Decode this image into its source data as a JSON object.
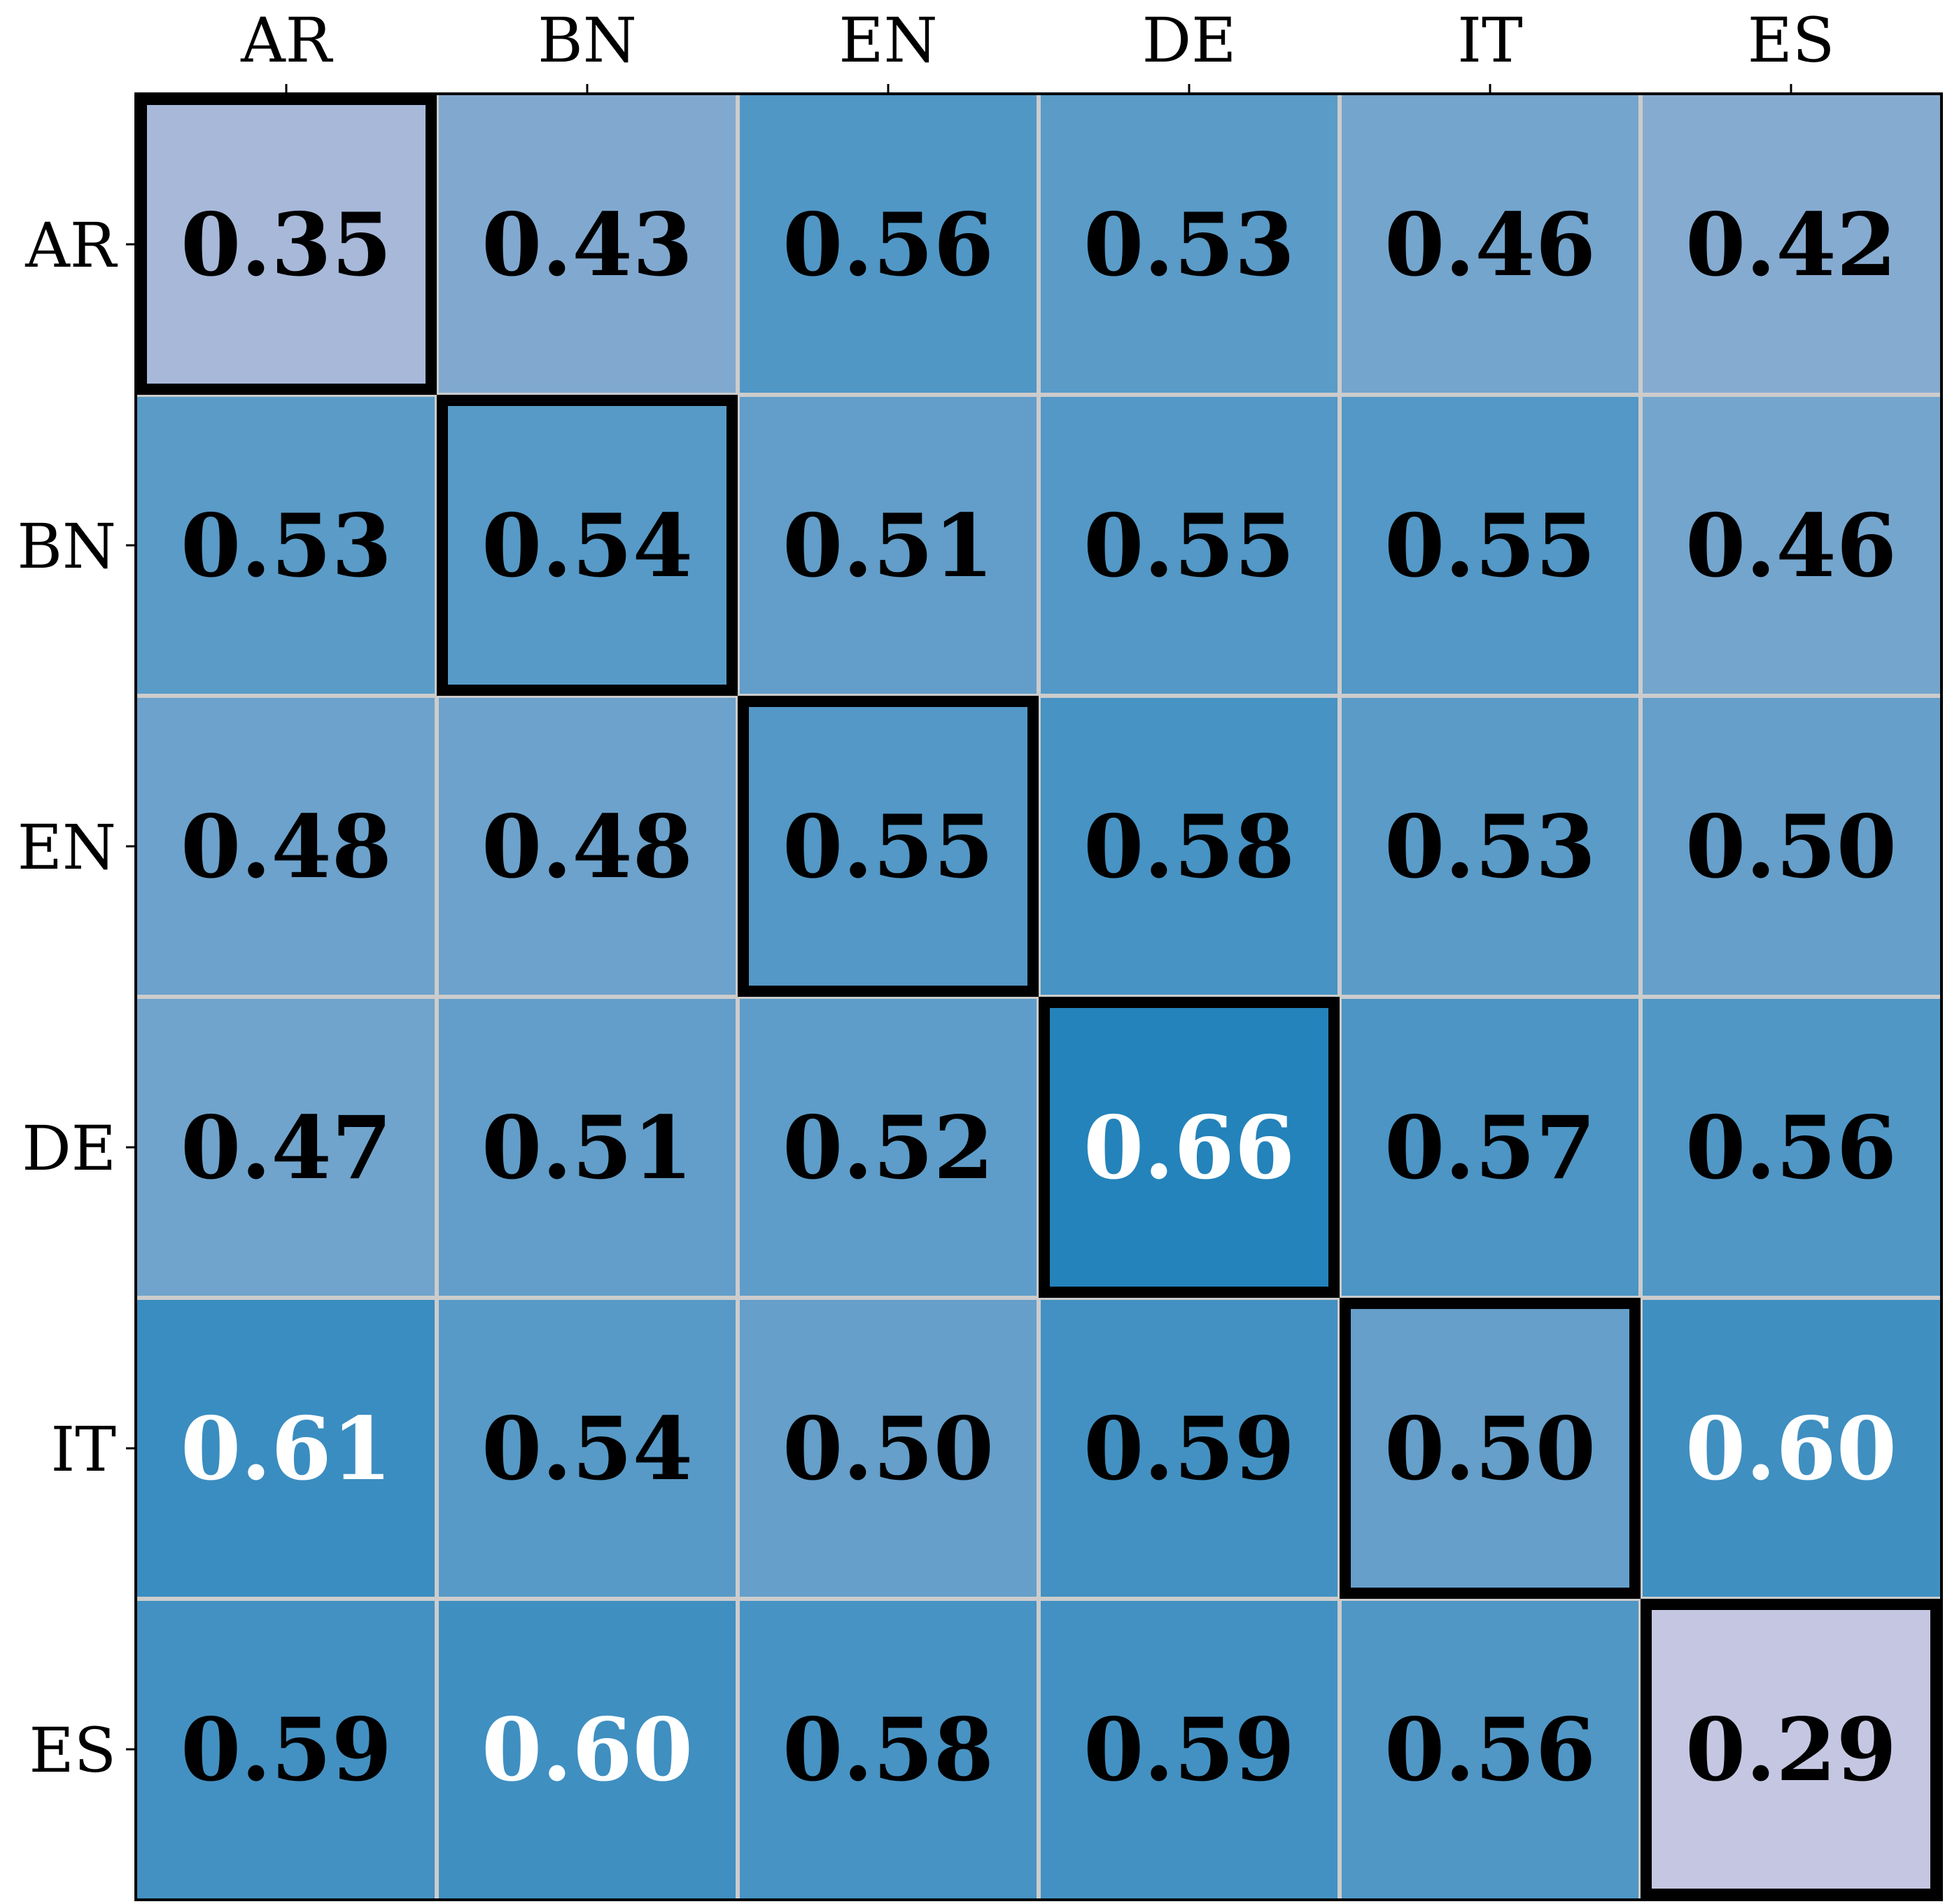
{
  "chart_data": {
    "type": "heatmap",
    "title": "",
    "xlabel": "",
    "ylabel": "",
    "x_categories": [
      "AR",
      "BN",
      "EN",
      "DE",
      "IT",
      "ES"
    ],
    "y_categories": [
      "AR",
      "BN",
      "EN",
      "DE",
      "IT",
      "ES"
    ],
    "x_tick_position": "top",
    "values": [
      [
        0.35,
        0.43,
        0.56,
        0.53,
        0.46,
        0.42
      ],
      [
        0.53,
        0.54,
        0.51,
        0.55,
        0.55,
        0.46
      ],
      [
        0.48,
        0.48,
        0.55,
        0.58,
        0.53,
        0.5
      ],
      [
        0.47,
        0.51,
        0.52,
        0.66,
        0.57,
        0.56
      ],
      [
        0.61,
        0.54,
        0.5,
        0.59,
        0.5,
        0.6
      ],
      [
        0.59,
        0.6,
        0.58,
        0.59,
        0.56,
        0.29
      ]
    ],
    "highlighted_cells": "diagonal",
    "colormap": "PuBu",
    "color_range": [
      0.29,
      0.66
    ],
    "colors": {
      "low": "#c3c7e2",
      "high": "#2784bb",
      "grid": "#cccccc",
      "highlight_border": "#000000",
      "text_dark": "#000000",
      "text_light": "#ffffff"
    },
    "grid": true,
    "legend": "none"
  }
}
